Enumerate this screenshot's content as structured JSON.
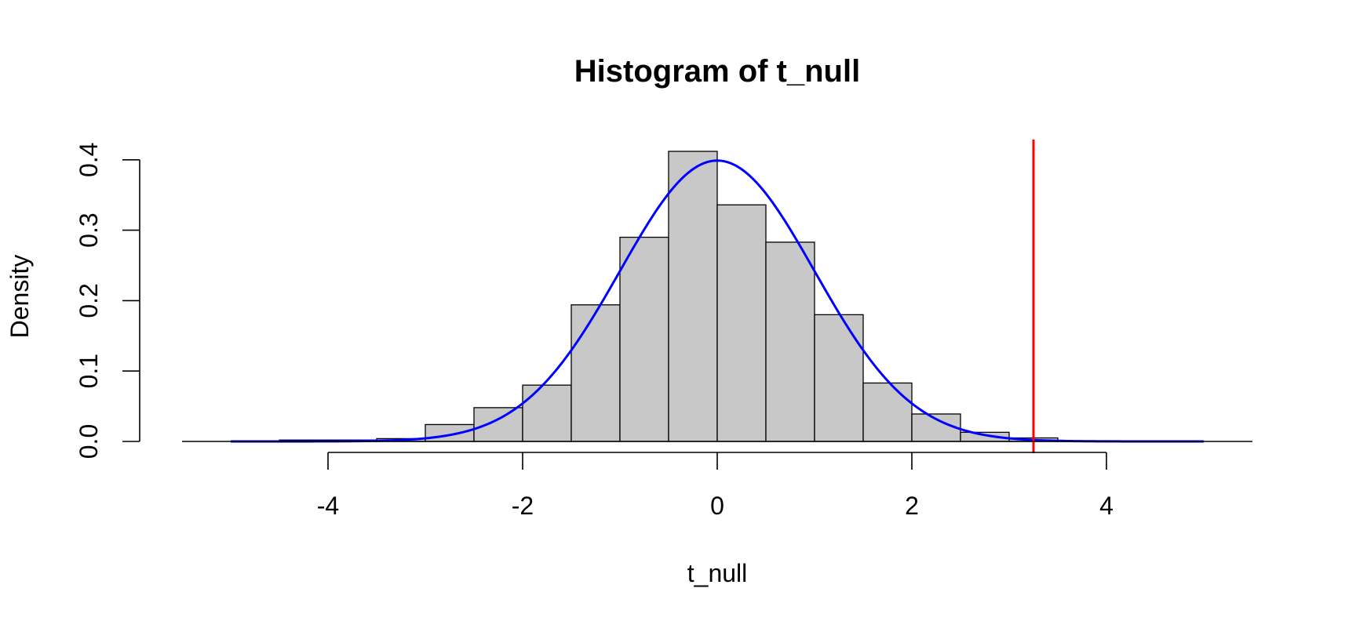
{
  "chart_data": {
    "type": "bar",
    "title": "Histogram of t_null",
    "xlabel": "t_null",
    "ylabel": "Density",
    "xlim": [
      -5.5,
      5.5
    ],
    "ylim": [
      0,
      0.43
    ],
    "x_ticks": [
      "-4",
      "-2",
      "0",
      "2",
      "4"
    ],
    "x_tick_values": [
      -4,
      -2,
      0,
      2,
      4
    ],
    "y_ticks": [
      "0.0",
      "0.1",
      "0.2",
      "0.3",
      "0.4"
    ],
    "y_tick_values": [
      0,
      0.1,
      0.2,
      0.3,
      0.4
    ],
    "bin_edges": [
      -5.5,
      -5.0,
      -4.5,
      -4.0,
      -3.5,
      -3.0,
      -2.5,
      -2.0,
      -1.5,
      -1.0,
      -0.5,
      0.0,
      0.5,
      1.0,
      1.5,
      2.0,
      2.5,
      3.0,
      3.5,
      4.0,
      4.5,
      5.0,
      5.5
    ],
    "densities": [
      0.0,
      0.0,
      0.002,
      0.002,
      0.004,
      0.024,
      0.048,
      0.08,
      0.194,
      0.29,
      0.412,
      0.336,
      0.283,
      0.18,
      0.083,
      0.039,
      0.013,
      0.005,
      0.001,
      0.0,
      0.0,
      0.0
    ],
    "bar_color": "#c8c8c8",
    "density_curve": {
      "distribution": "normal",
      "mean": 0,
      "sd": 1,
      "x_range": [
        -5,
        5
      ],
      "color": "#0000ff"
    },
    "reference_line": {
      "x": 3.25,
      "color": "#ff0000"
    }
  }
}
